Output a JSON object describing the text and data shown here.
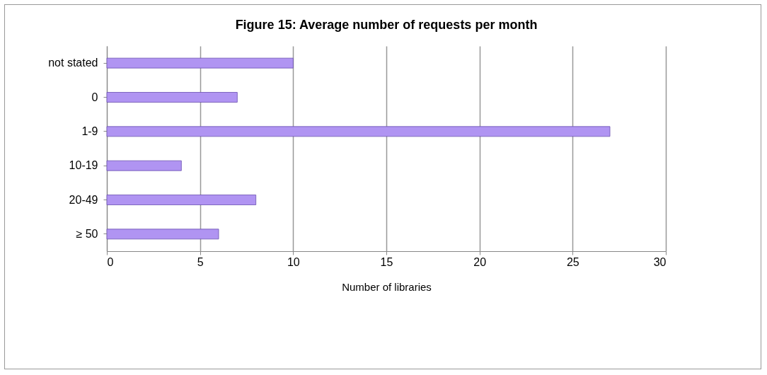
{
  "chart_data": {
    "type": "bar",
    "orientation": "horizontal",
    "title": "Figure 15: Average number of requests per month",
    "xlabel": "Number of libraries",
    "categories": [
      "not stated",
      "0",
      "1-9",
      "10-19",
      "20-49",
      "≥ 50"
    ],
    "values": [
      10,
      7,
      27,
      4,
      8,
      6
    ],
    "color": "#b094f2",
    "xlim": [
      0,
      30
    ],
    "xticks": [
      0,
      5,
      10,
      15,
      20,
      25,
      30
    ],
    "grid": "x"
  }
}
